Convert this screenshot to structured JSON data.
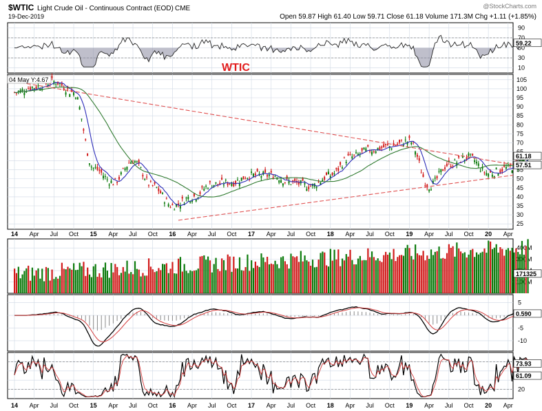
{
  "header": {
    "symbol": "$WTIC",
    "name": "Light Crude Oil - Continuous Contract (EOD)",
    "exchange": "CME",
    "date": "19-Dec-2019",
    "watermark": "@StockCharts.com",
    "ohlc_line": "Open 59.87  High 61.40  Low 59.71  Close 61.18  Volume 171.3M  Chg +1.11 (+1.85%)"
  },
  "annotation_title": "WTIC",
  "main_legend": "04 May Y:4.67",
  "colors": {
    "up": "#0b7a0b",
    "down": "#d11a1a",
    "ma_short": "#2a2ab8",
    "ma_long": "#2f7a2f",
    "trendline": "#e05050",
    "annotation": "#e21c1c",
    "grid": "#cfd8e4",
    "axis": "#000000"
  },
  "chart_data": {
    "type": "line",
    "x_labels": [
      "14",
      "Apr",
      "Jul",
      "Oct",
      "15",
      "Apr",
      "Jul",
      "Oct",
      "16",
      "Apr",
      "Jul",
      "Oct",
      "17",
      "Apr",
      "Jul",
      "Oct",
      "18",
      "Apr",
      "Jul",
      "Oct",
      "19",
      "Apr",
      "Jul",
      "Oct",
      "20",
      "Apr"
    ],
    "x_year_labels": [
      "14",
      "15",
      "16",
      "17",
      "18",
      "19",
      "20"
    ],
    "price_panel": {
      "yticks": [
        25,
        30,
        35,
        40,
        45,
        50,
        55,
        60,
        65,
        70,
        75,
        80,
        85,
        90,
        95,
        100,
        105
      ],
      "ylim": [
        22,
        108
      ],
      "last_close": "61.18",
      "ma_value": "57.51",
      "series_close_by_quarter": [
        98,
        101,
        104,
        98,
        56,
        48,
        60,
        46,
        35,
        40,
        47,
        48,
        52,
        52,
        48,
        46,
        52,
        62,
        66,
        68,
        71,
        46,
        58,
        62,
        53,
        56,
        61
      ],
      "trendlines": {
        "upper": [
          [
            0,
            104
          ],
          [
            26.5,
            58
          ]
        ],
        "lower": [
          [
            8.3,
            27
          ],
          [
            26.5,
            52
          ]
        ]
      }
    },
    "rsi_panel": {
      "yticks": [
        10,
        30,
        50,
        70,
        90
      ],
      "value": "59.22"
    },
    "volume_panel": {
      "yticks": [
        "100M",
        "200M",
        "300M",
        "400M"
      ],
      "value": "171325"
    },
    "macd_panel": {
      "yticks": [
        "-10",
        "-5",
        "0",
        "5"
      ],
      "value": "0.590"
    },
    "stoch_panel": {
      "yticks": [
        20,
        40,
        60,
        80
      ],
      "values": [
        "73.93",
        "61.09"
      ]
    }
  }
}
